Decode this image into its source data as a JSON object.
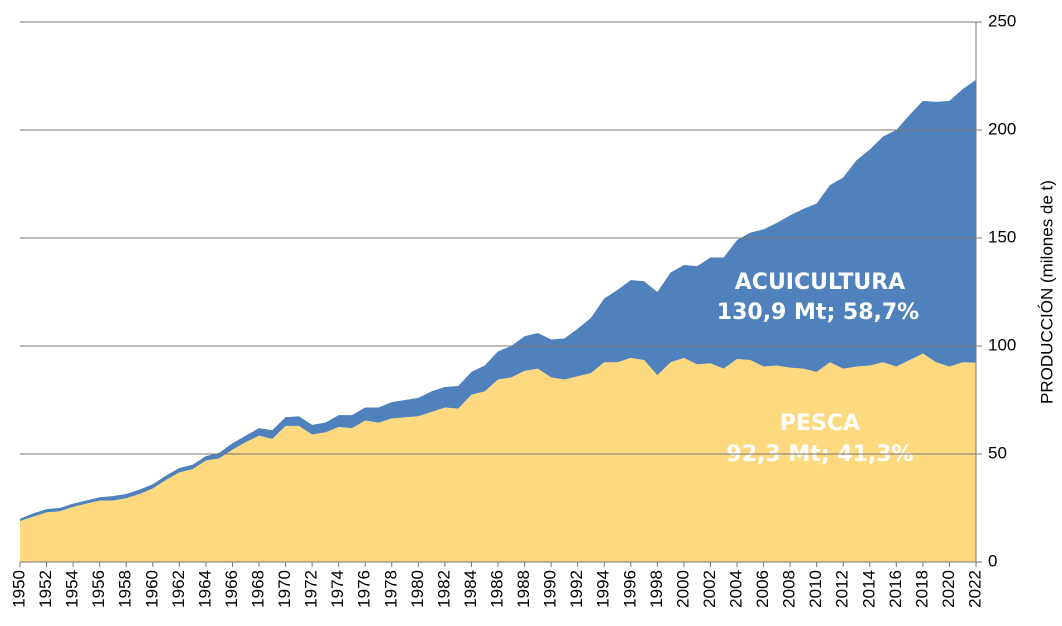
{
  "chart_data": {
    "type": "stacked_area",
    "y_axis_label": "PRODUCCIÓN (milones de t)",
    "x": [
      1950,
      1951,
      1952,
      1953,
      1954,
      1955,
      1956,
      1957,
      1958,
      1959,
      1960,
      1961,
      1962,
      1963,
      1964,
      1965,
      1966,
      1967,
      1968,
      1969,
      1970,
      1971,
      1972,
      1973,
      1974,
      1975,
      1976,
      1977,
      1978,
      1979,
      1980,
      1981,
      1982,
      1983,
      1984,
      1985,
      1986,
      1987,
      1988,
      1989,
      1990,
      1991,
      1992,
      1993,
      1994,
      1995,
      1996,
      1997,
      1998,
      1999,
      2000,
      2001,
      2002,
      2003,
      2004,
      2005,
      2006,
      2007,
      2008,
      2009,
      2010,
      2011,
      2012,
      2013,
      2014,
      2015,
      2016,
      2017,
      2018,
      2019,
      2020,
      2021,
      2022
    ],
    "xlim": [
      1950,
      2022
    ],
    "xticks": [
      1950,
      1952,
      1954,
      1956,
      1958,
      1960,
      1962,
      1964,
      1966,
      1968,
      1970,
      1972,
      1974,
      1976,
      1978,
      1980,
      1982,
      1984,
      1986,
      1988,
      1990,
      1992,
      1994,
      1996,
      1998,
      2000,
      2002,
      2004,
      2006,
      2008,
      2010,
      2012,
      2014,
      2016,
      2018,
      2020,
      2022
    ],
    "ylim": [
      0,
      250
    ],
    "yticks": [
      0,
      50,
      100,
      150,
      200,
      250
    ],
    "y_axis_side": "right",
    "grid": true,
    "series": [
      {
        "name": "PESCA",
        "color": "#FFD980",
        "values": [
          19,
          21,
          23,
          23.5,
          25.5,
          27,
          28.5,
          28.5,
          29.5,
          31.5,
          34,
          38,
          41.5,
          43,
          47,
          48,
          52,
          55.5,
          58.5,
          57,
          63,
          63,
          59,
          60,
          62.5,
          62,
          65.5,
          64.5,
          66.5,
          67,
          67.5,
          69.5,
          71.5,
          71,
          77.5,
          79,
          84.5,
          85.5,
          88.5,
          89.5,
          85.5,
          84.5,
          86,
          87.5,
          92.5,
          92.5,
          94.5,
          93.5,
          86.5,
          92.5,
          94.5,
          91.5,
          92,
          89.5,
          94,
          93.5,
          90.5,
          91,
          90,
          89.5,
          88,
          92.5,
          89.5,
          90.5,
          91,
          92.5,
          90.5,
          93.5,
          96.5,
          92.5,
          90.5,
          92.5,
          92.3
        ]
      },
      {
        "name": "ACUICULTURA",
        "color": "#4F81BD",
        "values": [
          1,
          1.5,
          1.5,
          1.5,
          1.5,
          1.5,
          1.5,
          2,
          2,
          2,
          2,
          2,
          2,
          2,
          2,
          2.5,
          3,
          3,
          3.5,
          4,
          4,
          4.5,
          4.5,
          4.5,
          5.5,
          6,
          6,
          7,
          7.5,
          8,
          8.5,
          9.5,
          9.5,
          10.5,
          10.5,
          12,
          13,
          14.5,
          16,
          16.5,
          17.5,
          19,
          22,
          25.5,
          29.5,
          33.5,
          36,
          36.5,
          38.5,
          41.5,
          43,
          45.5,
          49,
          51.5,
          55,
          59,
          63.5,
          66,
          70.5,
          74,
          78,
          82,
          88.5,
          95.5,
          100,
          104.5,
          109.5,
          113.5,
          117,
          120.5,
          123,
          126.5,
          130.9
        ]
      }
    ],
    "annotations": [
      "ACUICULTURA",
      "130,9 Mt; 58,7%",
      "PESCA",
      "92,3 Mt; 41,3%"
    ]
  }
}
